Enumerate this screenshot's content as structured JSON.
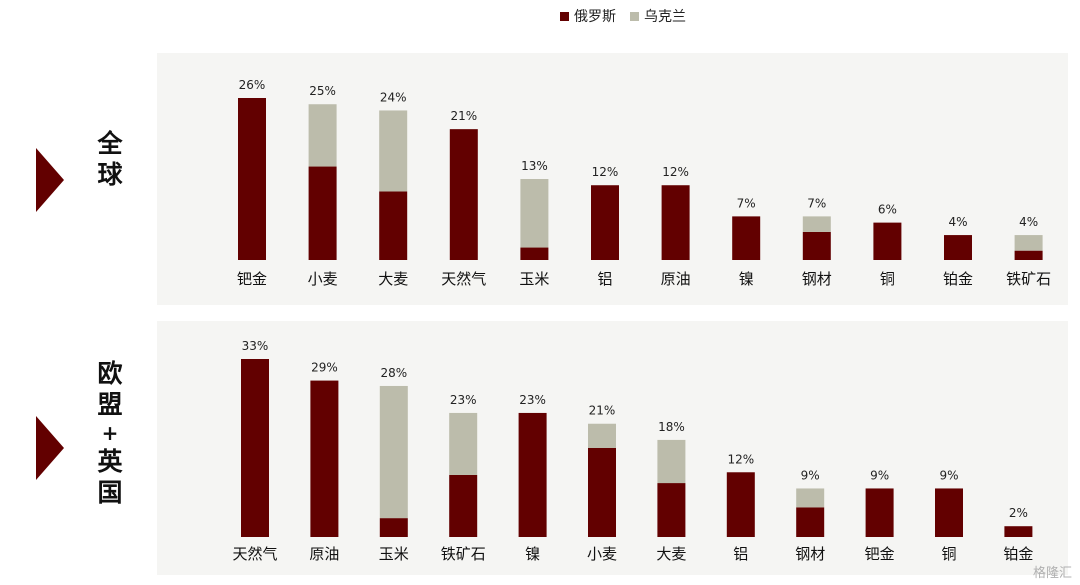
{
  "legend": {
    "russia": "俄罗斯",
    "ukraine": "乌克兰"
  },
  "colors": {
    "russia": "#620000",
    "ukraine": "#bcbcab"
  },
  "watermark": "格隆汇",
  "chart_data": [
    {
      "type": "bar",
      "stacked": true,
      "region_label": [
        "全",
        "球"
      ],
      "categories": [
        "钯金",
        "小麦",
        "大麦",
        "天然气",
        "玉米",
        "铝",
        "原油",
        "镍",
        "钢材",
        "铜",
        "铂金",
        "铁矿石"
      ],
      "totals": [
        "26%",
        "25%",
        "24%",
        "21%",
        "13%",
        "12%",
        "12%",
        "7%",
        "7%",
        "6%",
        "4%",
        "4%"
      ],
      "series": [
        {
          "name": "俄罗斯",
          "values": [
            26,
            15,
            11,
            21,
            2,
            12,
            12,
            7,
            4.5,
            6,
            4,
            1.5
          ]
        },
        {
          "name": "乌克兰",
          "values": [
            0,
            10,
            13,
            0,
            11,
            0,
            0,
            0,
            2.5,
            0,
            0,
            2.5
          ]
        }
      ],
      "ylim": [
        0,
        26
      ]
    },
    {
      "type": "bar",
      "stacked": true,
      "region_label": [
        "欧",
        "盟",
        "+",
        "英",
        "国"
      ],
      "categories": [
        "天然气",
        "原油",
        "玉米",
        "铁矿石",
        "镍",
        "小麦",
        "大麦",
        "铝",
        "钢材",
        "钯金",
        "铜",
        "铂金"
      ],
      "totals": [
        "33%",
        "29%",
        "28%",
        "23%",
        "23%",
        "21%",
        "18%",
        "12%",
        "9%",
        "9%",
        "9%",
        "2%"
      ],
      "series": [
        {
          "name": "俄罗斯",
          "values": [
            33,
            29,
            3.5,
            11.5,
            23,
            16.5,
            10,
            12,
            5.5,
            9,
            9,
            2
          ]
        },
        {
          "name": "乌克兰",
          "values": [
            0,
            0,
            24.5,
            11.5,
            0,
            4.5,
            8,
            0,
            3.5,
            0,
            0,
            0
          ]
        }
      ],
      "ylim": [
        0,
        33
      ]
    }
  ]
}
